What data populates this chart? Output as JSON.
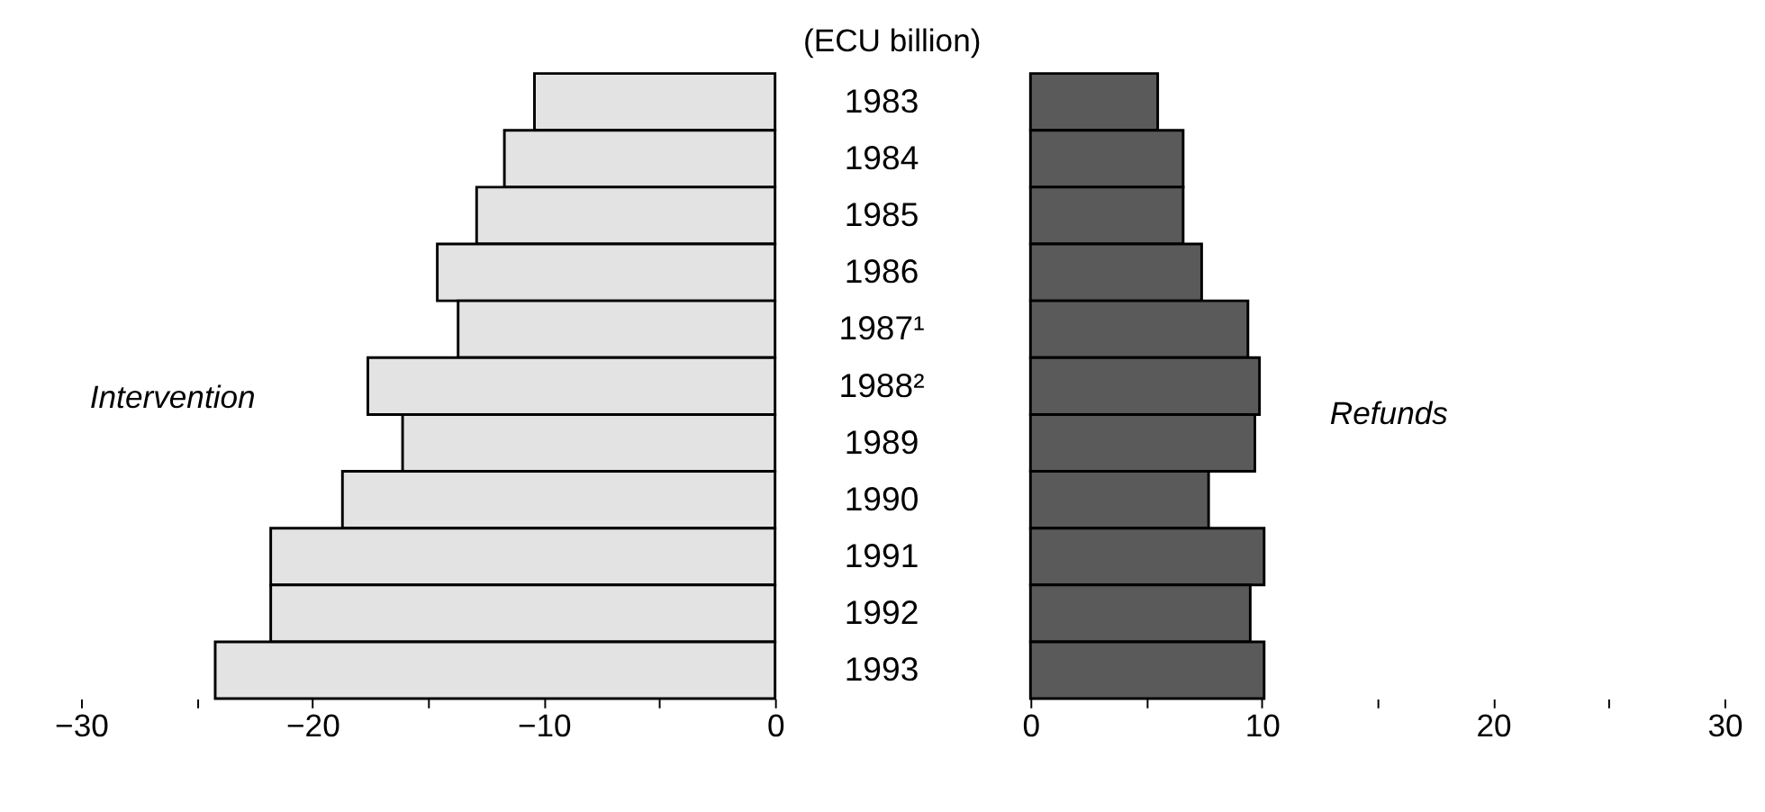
{
  "chart_data": [
    {
      "type": "bar",
      "orientation": "horizontal",
      "categories": [
        "1983",
        "1984",
        "1985",
        "1986",
        "1987¹",
        "1988²",
        "1989",
        "1990",
        "1991",
        "1992",
        "1993"
      ],
      "series": [
        {
          "name": "Intervention",
          "color": "#e3e3e3",
          "values": [
            -10.4,
            -11.7,
            -12.9,
            -14.6,
            -13.7,
            -17.6,
            -16.1,
            -18.7,
            -21.8,
            -21.8,
            -24.2
          ]
        }
      ],
      "xlim": [
        -30,
        0
      ],
      "xticks": [
        -30,
        {
          "value": -25,
          "label": null
        },
        -20,
        {
          "value": -15,
          "label": null
        },
        -10,
        {
          "value": -5,
          "label": null
        },
        0
      ],
      "grid": false,
      "legend": false
    },
    {
      "type": "bar",
      "orientation": "horizontal",
      "title": "(ECU billion)",
      "series": [
        {
          "name": "Refunds",
          "color": "#5a5a5a",
          "values": [
            5.5,
            6.6,
            6.6,
            7.4,
            9.4,
            9.9,
            9.7,
            7.7,
            10.1,
            9.5,
            10.1
          ]
        }
      ],
      "xlim": [
        0,
        30
      ],
      "xticks": [
        0,
        {
          "value": 5,
          "label": null
        },
        10,
        {
          "value": 15,
          "label": null
        },
        20,
        {
          "value": 25,
          "label": null
        },
        30
      ],
      "tick_labels": "x",
      "grid": false,
      "legend": false
    }
  ]
}
